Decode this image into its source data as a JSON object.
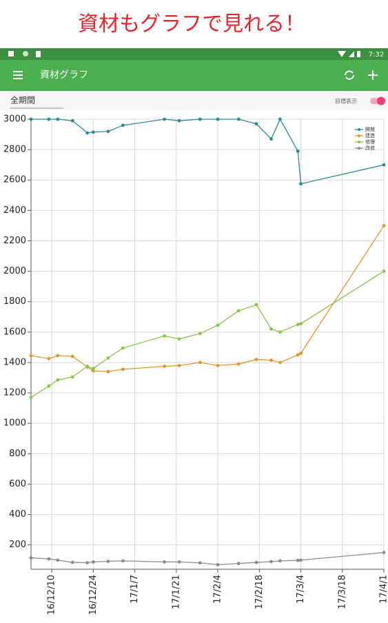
{
  "banner": {
    "title": "資材もグラフで見れる！"
  },
  "status_bar": {
    "time": "7:32"
  },
  "app_bar": {
    "title": "資材グラフ"
  },
  "controls": {
    "period": "全期間",
    "target_toggle": "目標表示"
  },
  "chart_data": {
    "type": "line",
    "x": [
      "16/12/3",
      "16/12/9",
      "16/12/12",
      "16/12/17",
      "16/12/22",
      "16/12/24",
      "16/12/29",
      "17/1/3",
      "17/1/17",
      "17/1/22",
      "17/1/29",
      "17/2/4",
      "17/2/11",
      "17/2/17",
      "17/2/22",
      "17/2/25",
      "17/3/3",
      "17/3/4",
      "17/4/1"
    ],
    "series": [
      {
        "name": "開発",
        "color": "#2b8a93",
        "values": [
          3000,
          3000,
          3000,
          2990,
          2910,
          2915,
          2920,
          2960,
          3000,
          2990,
          3000,
          3000,
          3000,
          2970,
          2870,
          3000,
          2790,
          2575,
          2700
        ]
      },
      {
        "name": "建造",
        "color": "#e0962a",
        "values": [
          1445,
          1425,
          1445,
          1440,
          1370,
          1345,
          1340,
          1355,
          1375,
          1380,
          1400,
          1380,
          1390,
          1420,
          1415,
          1400,
          1450,
          1460,
          2300
        ]
      },
      {
        "name": "修理",
        "color": "#8bc34a",
        "values": [
          1170,
          1245,
          1285,
          1305,
          1375,
          1360,
          1430,
          1495,
          1575,
          1555,
          1590,
          1645,
          1740,
          1780,
          1620,
          1600,
          1650,
          1655,
          2000
        ]
      },
      {
        "name": "改修",
        "color": "#8a8a8a",
        "values": [
          115,
          108,
          100,
          85,
          83,
          88,
          92,
          95,
          88,
          88,
          82,
          70,
          78,
          85,
          90,
          95,
          98,
          100,
          150
        ]
      }
    ],
    "xlim": [
      "16/12/3",
      "17/4/1"
    ],
    "xticks": [
      "16/12/10",
      "16/12/24",
      "17/1/7",
      "17/1/21",
      "17/2/4",
      "17/2/18",
      "17/3/4",
      "17/3/18",
      "17/4/1"
    ],
    "ylim": [
      40,
      3000
    ],
    "yticks": [
      200,
      400,
      600,
      800,
      1000,
      1200,
      1400,
      1600,
      1800,
      2000,
      2200,
      2400,
      2600,
      2800,
      3000
    ],
    "grid": true,
    "legend": "top-right"
  }
}
